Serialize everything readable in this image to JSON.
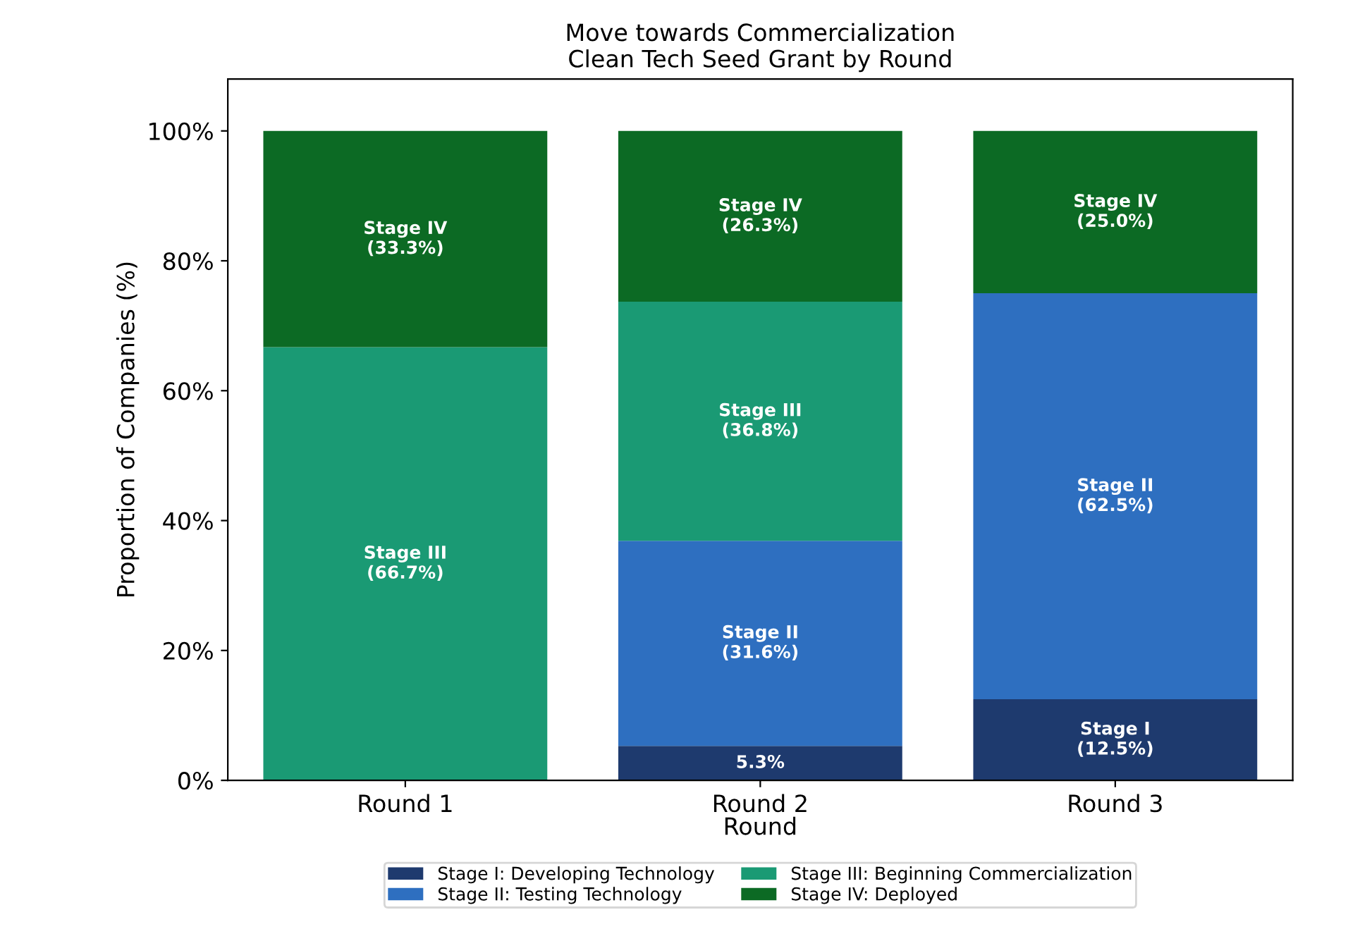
{
  "chart_data": {
    "type": "bar",
    "title": "Move towards Commercialization\nClean Tech Seed Grant by Round",
    "xlabel": "Round",
    "ylabel": "Proportion of Companies (%)",
    "categories": [
      "Round 1",
      "Round 2",
      "Round 3"
    ],
    "stacked": true,
    "series": [
      {
        "name": "Stage I: Developing Technology",
        "color": "#1e3a6e",
        "values": [
          0,
          5.3,
          12.5
        ],
        "value_labels": [
          null,
          "5.3%",
          "Stage I\n(12.5%)"
        ]
      },
      {
        "name": "Stage II: Testing Technology",
        "color": "#2e6fc0",
        "values": [
          0,
          31.6,
          62.5
        ],
        "value_labels": [
          null,
          "Stage II\n(31.6%)",
          "Stage II\n(62.5%)"
        ]
      },
      {
        "name": "Stage III: Beginning Commercialization",
        "color": "#1a9a74",
        "values": [
          66.7,
          36.8,
          0
        ],
        "value_labels": [
          "Stage III\n(66.7%)",
          "Stage III\n(36.8%)",
          null
        ]
      },
      {
        "name": "Stage IV: Deployed",
        "color": "#0c6a24",
        "values": [
          33.3,
          26.3,
          25.0
        ],
        "value_labels": [
          "Stage IV\n(33.3%)",
          "Stage IV\n(26.3%)",
          "Stage IV\n(25.0%)"
        ]
      }
    ],
    "ylim": [
      0,
      108
    ],
    "yticks": [
      {
        "value": 0,
        "label": "0%"
      },
      {
        "value": 20,
        "label": "20%"
      },
      {
        "value": 40,
        "label": "40%"
      },
      {
        "value": 60,
        "label": "60%"
      },
      {
        "value": 80,
        "label": "80%"
      },
      {
        "value": 100,
        "label": "100%"
      }
    ],
    "grid": false,
    "legend": "bottom"
  }
}
